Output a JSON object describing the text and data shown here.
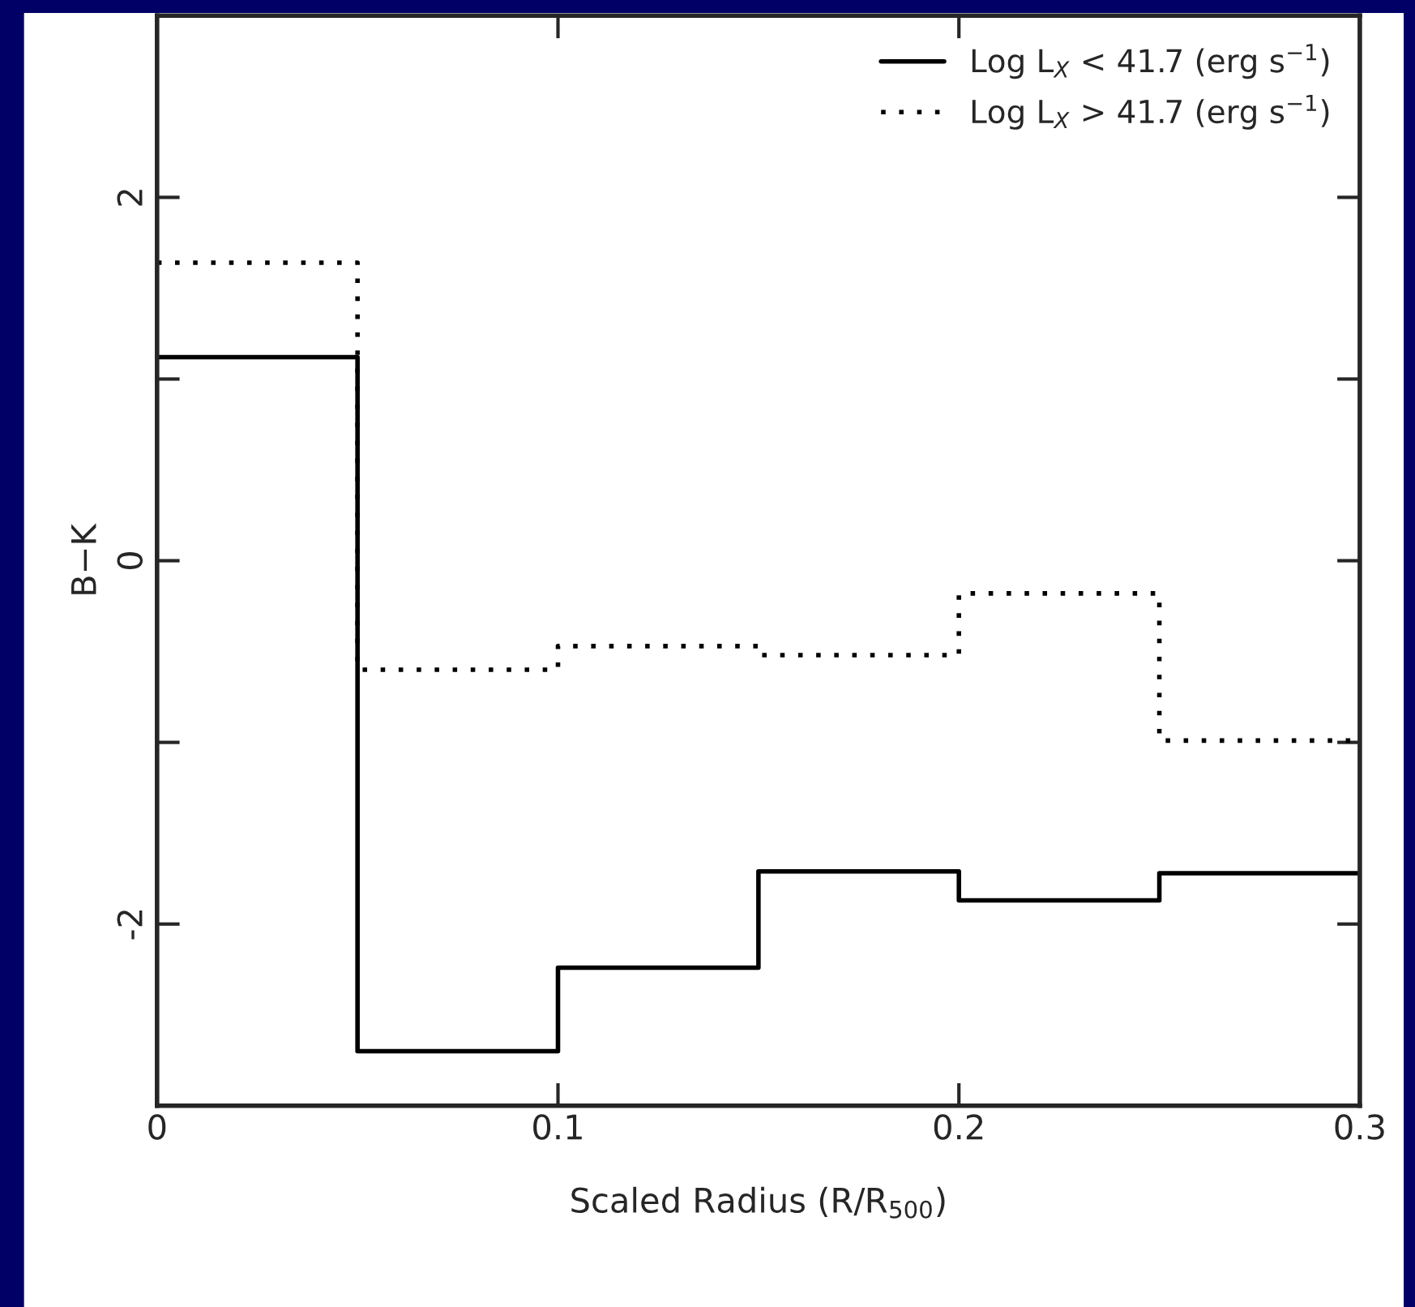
{
  "chart_data": {
    "type": "step",
    "xlabel": "Scaled Radius (R/R$_{500}$)",
    "ylabel": "B−K",
    "x": [
      0,
      0.05,
      0.1,
      0.15,
      0.2,
      0.25,
      0.3
    ],
    "series": [
      {
        "name": "Log L$_{X}$ < 41.7 (erg s$^{−1}$)",
        "color": "#000000",
        "line_style": "solid",
        "values": [
          1.12,
          -2.7,
          -2.24,
          -1.71,
          -1.87,
          -1.72,
          -1.72
        ]
      },
      {
        "name": "Log L$_{X}$ > 41.7 (erg s$^{−1}$)",
        "color": "#000000",
        "line_style": "dotted",
        "values": [
          1.64,
          -0.6,
          -0.47,
          -0.52,
          -0.18,
          -0.99,
          -0.99
        ]
      }
    ],
    "xlim": [
      0,
      0.3
    ],
    "xticks": [
      0,
      0.1,
      0.2,
      {
        "value": 0.3,
        "label": "0.3"
      }
    ],
    "ylim": [
      -3,
      3
    ],
    "yticks": [
      {
        "value": -3,
        "label": null
      },
      -2,
      {
        "value": -1,
        "label": null
      },
      0,
      {
        "value": 1,
        "label": null
      },
      2,
      {
        "value": 3,
        "label": null
      }
    ],
    "legend": "top right",
    "grid": false
  }
}
